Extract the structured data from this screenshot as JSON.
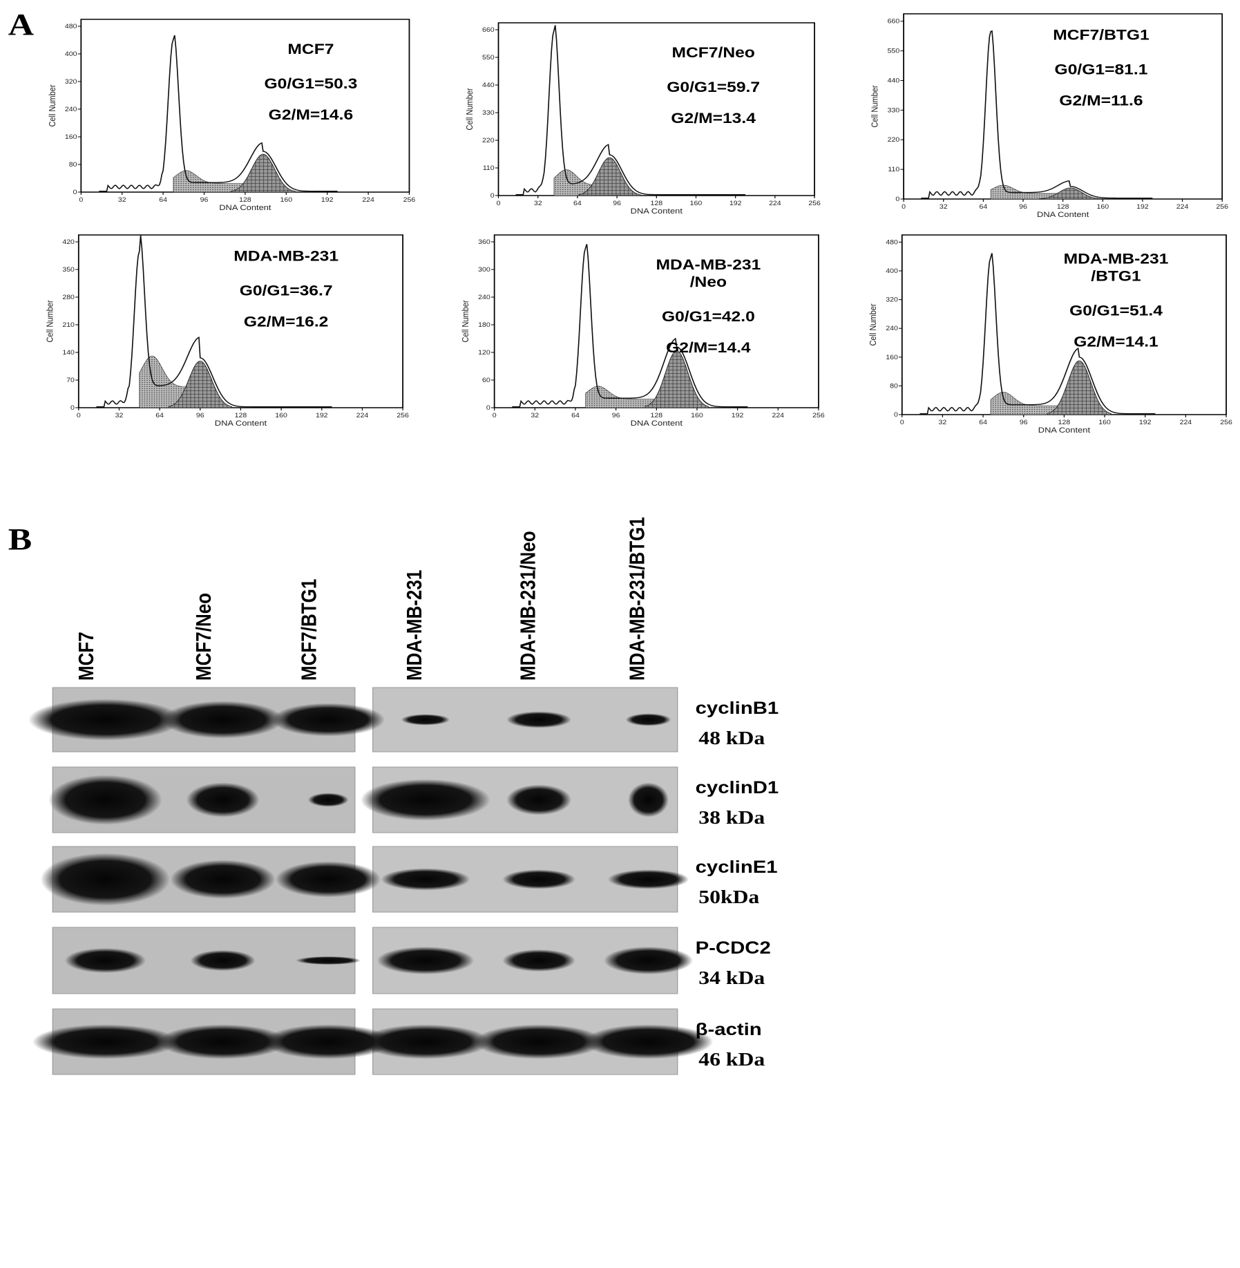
{
  "panels": {
    "A": {
      "label": "A",
      "x_label": "DNA Content",
      "y_label": "Cell Number",
      "xticks": [
        0,
        32,
        64,
        96,
        128,
        160,
        192,
        224,
        256
      ],
      "plots": [
        {
          "title": [
            "MCF7"
          ],
          "g0g1": "G0/G1=50.3",
          "g2m": "G2/M=14.6",
          "yticks": [
            0,
            80,
            160,
            240,
            320,
            400,
            480
          ]
        },
        {
          "title": [
            "MCF7/Neo"
          ],
          "g0g1": "G0/G1=59.7",
          "g2m": "G2/M=13.4",
          "yticks": [
            0,
            110,
            220,
            330,
            440,
            550,
            660
          ]
        },
        {
          "title": [
            "MCF7/BTG1"
          ],
          "g0g1": "G0/G1=81.1",
          "g2m": "G2/M=11.6",
          "yticks": [
            0,
            110,
            220,
            330,
            440,
            550,
            660
          ]
        },
        {
          "title": [
            "MDA-MB-231"
          ],
          "g0g1": "G0/G1=36.7",
          "g2m": "G2/M=16.2",
          "yticks": [
            0,
            70,
            140,
            210,
            280,
            350,
            420
          ]
        },
        {
          "title": [
            "MDA-MB-231",
            "/Neo"
          ],
          "g0g1": "G0/G1=42.0",
          "g2m": "G2/M=14.4",
          "yticks": [
            0,
            60,
            120,
            180,
            240,
            300,
            360
          ]
        },
        {
          "title": [
            "MDA-MB-231",
            "/BTG1"
          ],
          "g0g1": "G0/G1=51.4",
          "g2m": "G2/M=14.1",
          "yticks": [
            0,
            80,
            160,
            240,
            320,
            400,
            480
          ]
        }
      ]
    },
    "B": {
      "label": "B",
      "lanes": [
        "MCF7",
        "MCF7/Neo",
        "MCF7/BTG1",
        "MDA-MB-231",
        "MDA-MB-231/Neo",
        "MDA-MB-231/BTG1"
      ],
      "rows": [
        {
          "protein": "cyclinB1",
          "size": "48 kDa"
        },
        {
          "protein": "cyclinD1",
          "size": "38 kDa"
        },
        {
          "protein": "cyclinE1",
          "size": "50kDa"
        },
        {
          "protein": "P-CDC2",
          "size": "34 kDa"
        },
        {
          "protein": "β-actin",
          "size": "46 kDa"
        }
      ]
    }
  }
}
